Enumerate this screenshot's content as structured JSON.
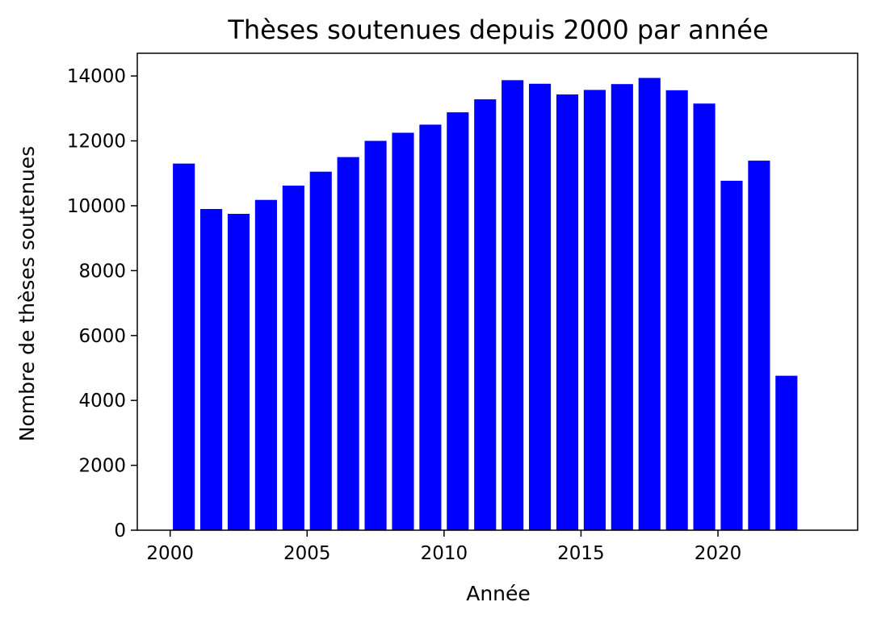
{
  "chart_data": {
    "type": "bar",
    "title": "Thèses soutenues depuis 2000 par année",
    "xlabel": "Année",
    "ylabel": "Nombre de thèses soutenues",
    "x": [
      2000,
      2001,
      2002,
      2003,
      2004,
      2005,
      2006,
      2007,
      2008,
      2009,
      2010,
      2011,
      2012,
      2013,
      2014,
      2015,
      2016,
      2017,
      2018,
      2019,
      2020,
      2021,
      2022
    ],
    "values": [
      11300,
      9900,
      9750,
      10180,
      10620,
      11050,
      11500,
      12000,
      12250,
      12500,
      12880,
      13280,
      13870,
      13760,
      13430,
      13570,
      13750,
      13940,
      13560,
      13150,
      10770,
      11390,
      4760
    ],
    "xlim": [
      1998.8,
      2025.1
    ],
    "ylim": [
      0,
      14700
    ],
    "xticks": [
      2000,
      2005,
      2010,
      2015,
      2020
    ],
    "yticks": [
      0,
      2000,
      4000,
      6000,
      8000,
      10000,
      12000,
      14000
    ],
    "bar_color": "#0000ff",
    "grid": false,
    "legend": "none"
  }
}
